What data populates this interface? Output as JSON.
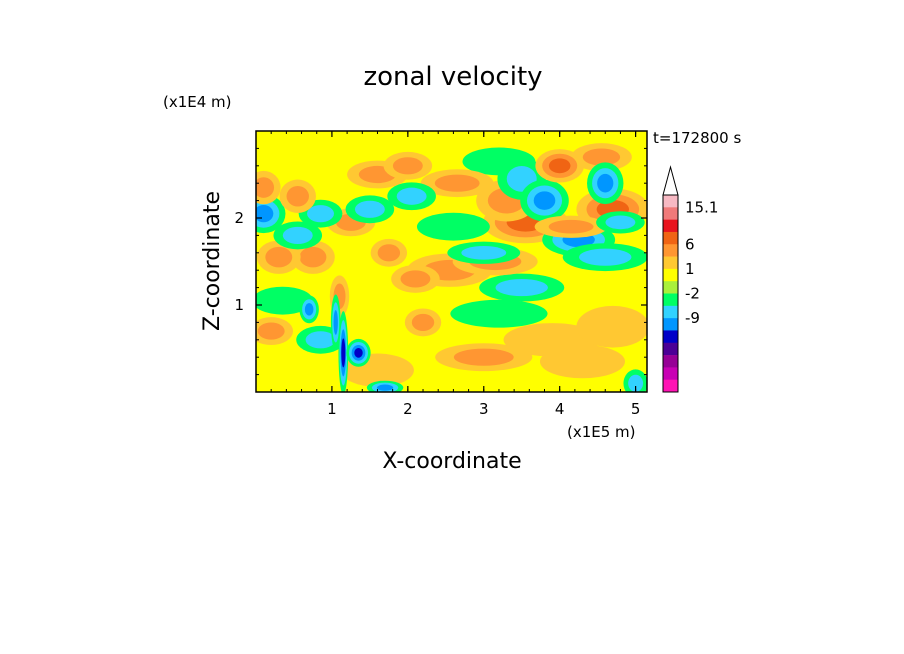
{
  "chart_data": {
    "type": "heatmap",
    "subtype": "filled-contour",
    "title": "zonal velocity",
    "xlabel": "X-coordinate",
    "ylabel": "Z-coordinate",
    "x_scale_label": "(x1E5 m)",
    "y_scale_label": "(x1E4 m)",
    "time_label": "t=172800 s",
    "xlim": [
      0,
      5.15
    ],
    "ylim": [
      0,
      3.0
    ],
    "x_ticks": [
      1,
      2,
      3,
      4,
      5
    ],
    "y_ticks": [
      1,
      2
    ],
    "colorbar": {
      "labels": [
        "15.1",
        "6",
        "1",
        "-2",
        "-9"
      ],
      "extend_max": true,
      "colors": [
        "#f7b9c3",
        "#f07a7a",
        "#e8141e",
        "#f06414",
        "#ff9632",
        "#ffc832",
        "#ffff00",
        "#aaf03c",
        "#00ff64",
        "#32d2ff",
        "#0096ff",
        "#0000c8",
        "#4b0096",
        "#960096",
        "#c800b4",
        "#ff14b4"
      ]
    },
    "blobs": [
      {
        "x": 0.1,
        "z": 2.05,
        "v": -6,
        "rx": 0.18,
        "rz": 0.14
      },
      {
        "x": 0.3,
        "z": 1.55,
        "v": 4,
        "rx": 0.18,
        "rz": 0.12
      },
      {
        "x": 0.1,
        "z": 2.35,
        "v": 3,
        "rx": 0.14,
        "rz": 0.12
      },
      {
        "x": 0.55,
        "z": 2.25,
        "v": 3,
        "rx": 0.15,
        "rz": 0.12
      },
      {
        "x": 0.75,
        "z": 1.55,
        "v": 4,
        "rx": 0.18,
        "rz": 0.12
      },
      {
        "x": 0.55,
        "z": 1.8,
        "v": -3,
        "rx": 0.2,
        "rz": 0.1
      },
      {
        "x": 0.85,
        "z": 2.05,
        "v": -3,
        "rx": 0.18,
        "rz": 0.1
      },
      {
        "x": 0.35,
        "z": 1.05,
        "v": -2,
        "rx": 0.25,
        "rz": 0.1
      },
      {
        "x": 0.7,
        "z": 0.95,
        "v": -6,
        "rx": 0.08,
        "rz": 0.1
      },
      {
        "x": 0.85,
        "z": 0.6,
        "v": -3,
        "rx": 0.2,
        "rz": 0.1
      },
      {
        "x": 0.2,
        "z": 0.7,
        "v": 3,
        "rx": 0.18,
        "rz": 0.1
      },
      {
        "x": 1.15,
        "z": 0.45,
        "v": -8,
        "rx": 0.04,
        "rz": 0.3
      },
      {
        "x": 1.05,
        "z": 0.8,
        "v": -5,
        "rx": 0.04,
        "rz": 0.2
      },
      {
        "x": 1.35,
        "z": 0.45,
        "v": -7,
        "rx": 0.1,
        "rz": 0.1
      },
      {
        "x": 1.1,
        "z": 1.1,
        "v": 4,
        "rx": 0.08,
        "rz": 0.15
      },
      {
        "x": 1.5,
        "z": 2.1,
        "v": -4,
        "rx": 0.2,
        "rz": 0.1
      },
      {
        "x": 1.25,
        "z": 1.95,
        "v": 4,
        "rx": 0.2,
        "rz": 0.1
      },
      {
        "x": 1.6,
        "z": 2.5,
        "v": 3,
        "rx": 0.25,
        "rz": 0.1
      },
      {
        "x": 2.0,
        "z": 2.6,
        "v": 4,
        "rx": 0.2,
        "rz": 0.1
      },
      {
        "x": 2.05,
        "z": 2.25,
        "v": -3,
        "rx": 0.2,
        "rz": 0.1
      },
      {
        "x": 2.1,
        "z": 1.3,
        "v": 3,
        "rx": 0.2,
        "rz": 0.1
      },
      {
        "x": 1.75,
        "z": 1.6,
        "v": 3,
        "rx": 0.15,
        "rz": 0.1
      },
      {
        "x": 1.6,
        "z": 0.25,
        "v": 2,
        "rx": 0.3,
        "rz": 0.12
      },
      {
        "x": 1.7,
        "z": 0.05,
        "v": -5,
        "rx": 0.15,
        "rz": 0.05
      },
      {
        "x": 2.2,
        "z": 0.8,
        "v": 3,
        "rx": 0.15,
        "rz": 0.1
      },
      {
        "x": 2.6,
        "z": 1.9,
        "v": -2,
        "rx": 0.3,
        "rz": 0.1
      },
      {
        "x": 2.55,
        "z": 1.4,
        "v": 4,
        "rx": 0.35,
        "rz": 0.12
      },
      {
        "x": 2.65,
        "z": 2.4,
        "v": 3,
        "rx": 0.3,
        "rz": 0.1
      },
      {
        "x": 3.3,
        "z": 2.2,
        "v": 3,
        "rx": 0.25,
        "rz": 0.15
      },
      {
        "x": 3.55,
        "z": 1.95,
        "v": 5,
        "rx": 0.35,
        "rz": 0.15
      },
      {
        "x": 3.15,
        "z": 1.5,
        "v": 3,
        "rx": 0.35,
        "rz": 0.1
      },
      {
        "x": 3.0,
        "z": 1.6,
        "v": -3,
        "rx": 0.3,
        "rz": 0.08
      },
      {
        "x": 3.8,
        "z": 2.2,
        "v": -5,
        "rx": 0.2,
        "rz": 0.15
      },
      {
        "x": 3.5,
        "z": 2.45,
        "v": -4,
        "rx": 0.2,
        "rz": 0.15
      },
      {
        "x": 4.0,
        "z": 2.6,
        "v": 5,
        "rx": 0.2,
        "rz": 0.12
      },
      {
        "x": 4.6,
        "z": 2.4,
        "v": -5,
        "rx": 0.15,
        "rz": 0.15
      },
      {
        "x": 4.55,
        "z": 2.7,
        "v": 3,
        "rx": 0.25,
        "rz": 0.1
      },
      {
        "x": 4.7,
        "z": 2.1,
        "v": 5,
        "rx": 0.3,
        "rz": 0.15
      },
      {
        "x": 4.25,
        "z": 1.75,
        "v": -5,
        "rx": 0.3,
        "rz": 0.12
      },
      {
        "x": 4.6,
        "z": 1.55,
        "v": -3,
        "rx": 0.35,
        "rz": 0.1
      },
      {
        "x": 4.15,
        "z": 1.9,
        "v": 3,
        "rx": 0.3,
        "rz": 0.08
      },
      {
        "x": 3.5,
        "z": 1.2,
        "v": -3,
        "rx": 0.35,
        "rz": 0.1
      },
      {
        "x": 3.2,
        "z": 0.9,
        "v": -2,
        "rx": 0.4,
        "rz": 0.1
      },
      {
        "x": 4.8,
        "z": 1.95,
        "v": -4,
        "rx": 0.2,
        "rz": 0.08
      },
      {
        "x": 3.2,
        "z": 2.65,
        "v": -2,
        "rx": 0.3,
        "rz": 0.1
      },
      {
        "x": 3.9,
        "z": 0.6,
        "v": 2,
        "rx": 0.4,
        "rz": 0.12
      },
      {
        "x": 4.3,
        "z": 0.35,
        "v": 2,
        "rx": 0.35,
        "rz": 0.12
      },
      {
        "x": 5.0,
        "z": 0.1,
        "v": -4,
        "rx": 0.1,
        "rz": 0.1
      },
      {
        "x": 4.7,
        "z": 0.75,
        "v": 2,
        "rx": 0.3,
        "rz": 0.15
      },
      {
        "x": 3.0,
        "z": 0.4,
        "v": 3,
        "rx": 0.4,
        "rz": 0.1
      }
    ]
  }
}
